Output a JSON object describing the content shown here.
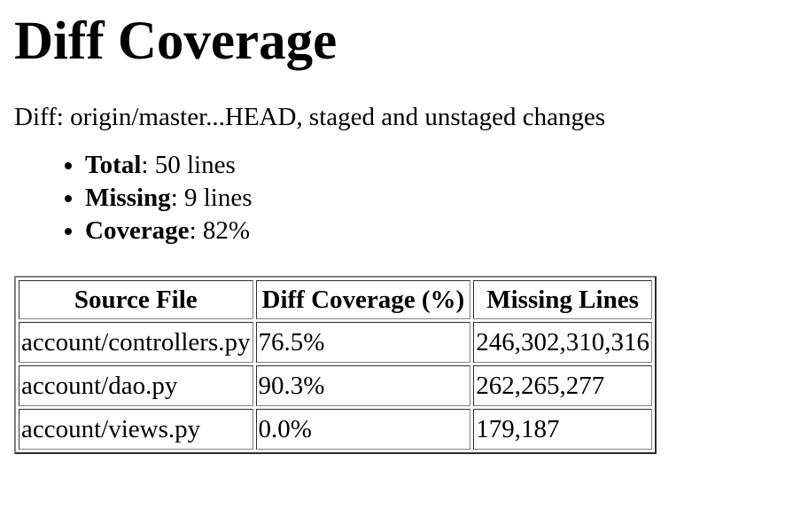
{
  "page": {
    "title": "Diff Coverage",
    "diff_description": "Diff: origin/master...HEAD, staged and unstaged changes"
  },
  "summary": [
    {
      "label": "Total",
      "value": ": 50 lines"
    },
    {
      "label": "Missing",
      "value": ": 9 lines"
    },
    {
      "label": "Coverage",
      "value": ": 82%"
    }
  ],
  "table": {
    "headers": [
      "Source File",
      "Diff Coverage (%)",
      "Missing Lines"
    ],
    "rows": [
      [
        "account/controllers.py",
        "76.5%",
        "246,302,310,316"
      ],
      [
        "account/dao.py",
        "90.3%",
        "262,265,277"
      ],
      [
        "account/views.py",
        "0.0%",
        "179,187"
      ]
    ]
  }
}
